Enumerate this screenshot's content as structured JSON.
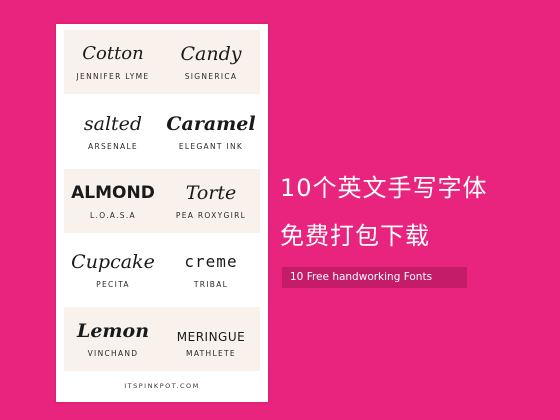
{
  "colors": {
    "background": "#e8247e",
    "card": "#ffffff",
    "row_tint": "#f8f1ec",
    "subtitle_box": "#c41c68"
  },
  "fonts": [
    {
      "sample": "Cotton",
      "name": "JENNIFER LYME"
    },
    {
      "sample": "Candy",
      "name": "SIGNERICA"
    },
    {
      "sample": "salted",
      "name": "ARSENALE"
    },
    {
      "sample": "Caramel",
      "name": "ELEGANT INK"
    },
    {
      "sample": "ALMOND",
      "name": "L.O.A.S.A"
    },
    {
      "sample": "Torte",
      "name": "PEA ROXYGIRL"
    },
    {
      "sample": "Cupcake",
      "name": "PECITA"
    },
    {
      "sample": "creme",
      "name": "TRIBAL"
    },
    {
      "sample": "Lemon",
      "name": "VINCHAND"
    },
    {
      "sample": "MERINGUE",
      "name": "MATHLETE"
    }
  ],
  "footer": "ITSPINKPOT.COM",
  "title_line1": "10个英文手写字体",
  "title_line2": "免费打包下载",
  "subtitle": "10 Free handworking Fonts"
}
